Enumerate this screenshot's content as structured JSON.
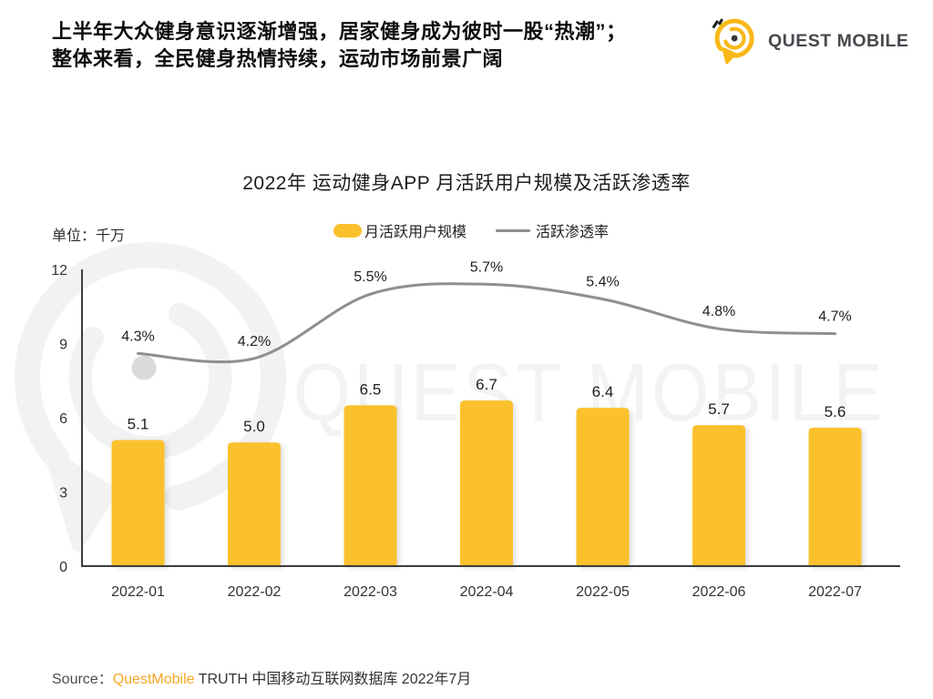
{
  "header": {
    "line1": "上半年大众健身意识逐渐增强，居家健身成为彼时一股“热潮”；",
    "line2": "整体来看，全民健身热情持续，运动市场前景广阔"
  },
  "logo": {
    "text": "QUEST MOBILE"
  },
  "chart": {
    "title": "2022年 运动健身APP 月活跃用户规模及活跃渗透率",
    "unit_label": "单位：千万",
    "legend": {
      "bar_label": "月活跃用户规模",
      "line_label": "活跃渗透率"
    }
  },
  "chart_data": {
    "type": "bar",
    "title": "2022年 运动健身APP 月活跃用户规模及活跃渗透率",
    "categories": [
      "2022-01",
      "2022-02",
      "2022-03",
      "2022-04",
      "2022-05",
      "2022-06",
      "2022-07"
    ],
    "series": [
      {
        "name": "月活跃用户规模",
        "type": "bar",
        "unit": "千万",
        "values": [
          5.1,
          5.0,
          6.5,
          6.7,
          6.4,
          5.7,
          5.6
        ]
      },
      {
        "name": "活跃渗透率",
        "type": "line",
        "unit": "%",
        "values": [
          4.3,
          4.2,
          5.5,
          5.7,
          5.4,
          4.8,
          4.7
        ]
      }
    ],
    "y_axis": {
      "min": 0,
      "max": 12,
      "ticks": [
        0,
        3,
        6,
        9,
        12
      ]
    },
    "secondary_axis": {
      "min": 0,
      "max": 6,
      "visible": false
    },
    "legend_position": "top-center",
    "grid": false,
    "colors": {
      "bar": "#FBC12D",
      "line": "#8f8f8f",
      "axis": "#3c3c3c",
      "label": "#1f1f1f"
    }
  },
  "watermark": {
    "text": "QUEST MOBILE"
  },
  "source": {
    "prefix": "Source：",
    "brand": "QuestMobile",
    "rest": " TRUTH 中国移动互联网数据库 2022年7月"
  }
}
